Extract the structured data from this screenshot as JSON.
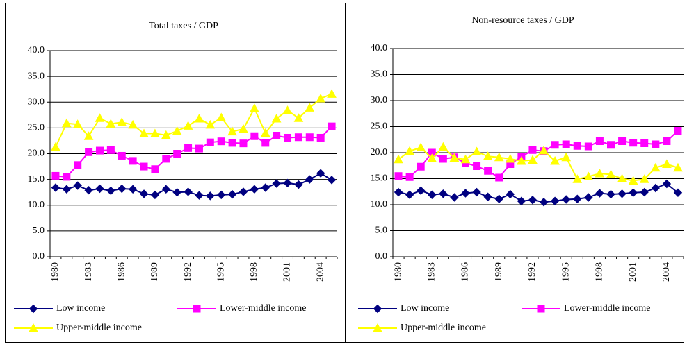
{
  "chart_data": [
    {
      "type": "line",
      "title": "Total taxes / GDP",
      "legend": "bottom",
      "categories": [
        "1980",
        null,
        null,
        "1983",
        null,
        null,
        "1986",
        null,
        null,
        "1989",
        null,
        null,
        "1992",
        null,
        null,
        "1995",
        null,
        null,
        "1998",
        null,
        null,
        "2001",
        null,
        null,
        "2004",
        null
      ],
      "ylim": [
        0,
        40
      ],
      "yticks": [
        {
          "value": 0,
          "label": "0.0"
        },
        {
          "value": 5,
          "label": "5.0"
        },
        {
          "value": 10,
          "label": "10.0"
        },
        {
          "value": 15,
          "label": "15.0"
        },
        {
          "value": 20,
          "label": "20.0"
        },
        {
          "value": 25,
          "label": "25.0"
        },
        {
          "value": 30,
          "label": "30.0"
        },
        {
          "value": 35,
          "label": "35.0"
        },
        {
          "value": 40,
          "label": "40.0"
        }
      ],
      "grid": true,
      "series": [
        {
          "name": "Low income",
          "color": "#000080",
          "marker": "diamond",
          "values": [
            13.4,
            13.1,
            13.8,
            12.9,
            13.2,
            12.8,
            13.2,
            13.1,
            12.2,
            12.0,
            13.1,
            12.5,
            12.6,
            11.9,
            11.8,
            12.0,
            12.1,
            12.6,
            13.1,
            13.4,
            14.2,
            14.3,
            14.0,
            15.0,
            16.2,
            14.9
          ]
        },
        {
          "name": "Lower-middle income",
          "color": "#FF00FF",
          "marker": "square",
          "values": [
            15.7,
            15.5,
            17.8,
            20.3,
            20.6,
            20.7,
            19.6,
            18.6,
            17.5,
            17.0,
            19.0,
            20.0,
            21.1,
            21.0,
            22.2,
            22.4,
            22.1,
            22.0,
            23.4,
            22.1,
            23.5,
            23.1,
            23.2,
            23.2,
            23.1,
            25.3
          ]
        },
        {
          "name": "Upper-middle income",
          "color": "#FFFF00",
          "marker": "triangle",
          "values": [
            21.3,
            25.9,
            25.7,
            23.4,
            26.9,
            25.8,
            26.1,
            25.6,
            23.9,
            23.9,
            23.6,
            24.4,
            25.4,
            26.8,
            25.6,
            27.0,
            24.3,
            24.8,
            28.8,
            24.0,
            26.8,
            28.4,
            26.9,
            28.9,
            30.7,
            31.6
          ]
        }
      ]
    },
    {
      "type": "line",
      "title": "Non-resource taxes / GDP",
      "legend": "bottom",
      "categories": [
        "1980",
        null,
        null,
        "1983",
        null,
        null,
        "1986",
        null,
        null,
        "1989",
        null,
        null,
        "1992",
        null,
        null,
        "1995",
        null,
        null,
        "1998",
        null,
        null,
        "2001",
        null,
        null,
        "2004",
        null
      ],
      "ylim": [
        0,
        40
      ],
      "yticks": [
        {
          "value": 0,
          "label": "0.0"
        },
        {
          "value": 5,
          "label": "5.0"
        },
        {
          "value": 10,
          "label": "10.0"
        },
        {
          "value": 15,
          "label": "15.0"
        },
        {
          "value": 20,
          "label": "20.0"
        },
        {
          "value": 25,
          "label": "25.0"
        },
        {
          "value": 30,
          "label": "30.0"
        },
        {
          "value": 35,
          "label": "35.0"
        },
        {
          "value": 40,
          "label": "40.0"
        }
      ],
      "grid": true,
      "series": [
        {
          "name": "Low income",
          "color": "#000080",
          "marker": "diamond",
          "values": [
            12.4,
            11.9,
            12.7,
            11.9,
            12.1,
            11.4,
            12.2,
            12.4,
            11.5,
            11.1,
            12.0,
            10.7,
            10.9,
            10.5,
            10.7,
            11.0,
            11.1,
            11.4,
            12.2,
            12.0,
            12.1,
            12.3,
            12.4,
            13.2,
            14.0,
            12.3
          ]
        },
        {
          "name": "Lower-middle income",
          "color": "#FF00FF",
          "marker": "square",
          "values": [
            15.5,
            15.3,
            17.3,
            20.0,
            18.8,
            19.1,
            18.0,
            17.4,
            16.5,
            15.2,
            17.8,
            19.2,
            20.5,
            20.3,
            21.5,
            21.6,
            21.3,
            21.2,
            22.2,
            21.5,
            22.2,
            21.9,
            21.8,
            21.6,
            22.2,
            24.2
          ]
        },
        {
          "name": "Upper-middle income",
          "color": "#FFFF00",
          "marker": "triangle",
          "values": [
            18.7,
            20.3,
            21.0,
            18.9,
            21.1,
            19.0,
            18.7,
            20.2,
            19.3,
            19.1,
            18.8,
            18.4,
            18.6,
            20.4,
            18.4,
            19.1,
            14.9,
            15.4,
            16.0,
            15.8,
            15.0,
            14.6,
            14.9,
            17.1,
            17.8,
            17.1
          ]
        }
      ]
    }
  ]
}
